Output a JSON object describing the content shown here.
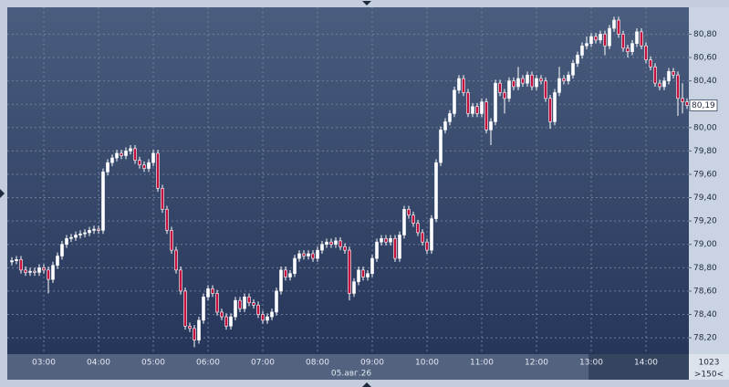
{
  "chart_data": {
    "type": "candlestick",
    "x": [
      145,
      150,
      155,
      160,
      165,
      170,
      175,
      180,
      185,
      190,
      195,
      200,
      205,
      210,
      215,
      220,
      225,
      230,
      235,
      240,
      245,
      250,
      255,
      260,
      265,
      270,
      275,
      280,
      285,
      290,
      295,
      300,
      305,
      310,
      315,
      320,
      325,
      330,
      335,
      340,
      345,
      350,
      355,
      360,
      365,
      370,
      375,
      380,
      385,
      390,
      395,
      400,
      405,
      410,
      415,
      420,
      425,
      430,
      435,
      440,
      445,
      450,
      455,
      460,
      465,
      470,
      475,
      480,
      485,
      490,
      495,
      500,
      505,
      510,
      515,
      520,
      525,
      530,
      535,
      540,
      545,
      550,
      555,
      560,
      565,
      570,
      575,
      580,
      585,
      590,
      595,
      600,
      605,
      610,
      615,
      620,
      625,
      630,
      635,
      640,
      645,
      650,
      655,
      660,
      665,
      670,
      675,
      680,
      685,
      690,
      695,
      700,
      705,
      710,
      715,
      720,
      725,
      730,
      735,
      740,
      745,
      750,
      755,
      760,
      765,
      770,
      775,
      780,
      785,
      790,
      795,
      800,
      805,
      810,
      815,
      820,
      825,
      830,
      835,
      840,
      845,
      850,
      855,
      860,
      865,
      870,
      875,
      880,
      885
    ],
    "open": [
      78.85,
      78.86,
      78.87,
      78.78,
      78.76,
      78.77,
      78.76,
      78.8,
      78.78,
      78.7,
      78.82,
      78.9,
      79.0,
      79.05,
      79.06,
      79.08,
      79.09,
      79.1,
      79.12,
      79.13,
      79.12,
      79.62,
      79.7,
      79.74,
      79.78,
      79.76,
      79.8,
      79.82,
      79.72,
      79.68,
      79.65,
      79.7,
      79.78,
      79.48,
      79.3,
      79.12,
      78.95,
      78.78,
      78.6,
      78.3,
      78.28,
      78.18,
      78.35,
      78.55,
      78.62,
      78.58,
      78.42,
      78.38,
      78.3,
      78.38,
      78.52,
      78.45,
      78.55,
      78.5,
      78.48,
      78.4,
      78.35,
      78.38,
      78.42,
      78.6,
      78.78,
      78.72,
      78.75,
      78.88,
      78.92,
      78.9,
      78.92,
      78.88,
      78.95,
      79.0,
      79.02,
      79.0,
      79.03,
      78.98,
      78.95,
      78.58,
      78.68,
      78.78,
      78.72,
      78.75,
      78.88,
      79.02,
      79.05,
      79.02,
      79.05,
      78.88,
      79.08,
      79.3,
      79.25,
      79.18,
      79.1,
      79.02,
      78.95,
      79.22,
      79.7,
      79.98,
      80.05,
      80.12,
      80.32,
      80.42,
      80.3,
      80.12,
      80.18,
      80.12,
      80.22,
      79.98,
      80.05,
      80.38,
      80.3,
      80.25,
      80.4,
      80.35,
      80.42,
      80.38,
      80.45,
      80.35,
      80.42,
      80.4,
      80.25,
      80.05,
      80.3,
      80.42,
      80.4,
      80.45,
      80.55,
      80.62,
      80.7,
      80.72,
      80.78,
      80.75,
      80.8,
      80.7,
      80.85,
      80.92,
      80.8,
      80.68,
      80.65,
      80.72,
      80.82,
      80.7,
      80.58,
      80.52,
      80.38,
      80.35,
      80.4,
      80.48,
      80.45,
      80.25,
      80.22
    ],
    "high": [
      78.89,
      78.9,
      78.9,
      78.81,
      78.8,
      78.8,
      78.83,
      78.83,
      78.81,
      78.85,
      78.93,
      79.03,
      79.08,
      79.09,
      79.11,
      79.12,
      79.13,
      79.15,
      79.16,
      79.16,
      79.65,
      79.73,
      79.77,
      79.81,
      79.81,
      79.83,
      79.85,
      79.85,
      79.75,
      79.71,
      79.73,
      79.81,
      79.81,
      79.51,
      79.33,
      79.15,
      78.98,
      78.81,
      78.63,
      78.33,
      78.31,
      78.38,
      78.58,
      78.65,
      78.65,
      78.61,
      78.45,
      78.41,
      78.41,
      78.55,
      78.55,
      78.58,
      78.58,
      78.53,
      78.51,
      78.43,
      78.41,
      78.45,
      78.63,
      78.81,
      78.81,
      78.78,
      78.91,
      78.95,
      78.95,
      78.95,
      78.95,
      78.98,
      79.03,
      79.05,
      79.05,
      79.06,
      79.06,
      79.01,
      78.98,
      78.71,
      78.81,
      78.81,
      78.78,
      78.91,
      79.05,
      79.08,
      79.08,
      79.08,
      79.08,
      79.11,
      79.33,
      79.33,
      79.28,
      79.21,
      79.13,
      79.05,
      79.25,
      79.73,
      80.01,
      80.08,
      80.15,
      80.35,
      80.45,
      80.45,
      80.33,
      80.21,
      80.21,
      80.25,
      80.25,
      80.08,
      80.41,
      80.41,
      80.33,
      80.43,
      80.43,
      80.52,
      80.45,
      80.48,
      80.48,
      80.45,
      80.45,
      80.43,
      80.28,
      80.33,
      80.52,
      80.45,
      80.48,
      80.58,
      80.65,
      80.73,
      80.78,
      80.81,
      80.81,
      80.83,
      80.83,
      80.88,
      80.95,
      80.95,
      80.83,
      80.71,
      80.75,
      80.85,
      80.85,
      80.73,
      80.61,
      80.55,
      80.41,
      80.43,
      80.51,
      80.51,
      80.48,
      80.38,
      80.25
    ],
    "low": [
      78.82,
      78.83,
      78.75,
      78.73,
      78.73,
      78.73,
      78.73,
      78.75,
      78.58,
      78.67,
      78.79,
      78.87,
      78.97,
      79.02,
      79.03,
      79.05,
      79.06,
      79.07,
      79.09,
      79.09,
      79.09,
      79.59,
      79.67,
      79.71,
      79.73,
      79.73,
      79.77,
      79.69,
      79.65,
      79.62,
      79.62,
      79.67,
      79.45,
      79.27,
      79.09,
      78.92,
      78.75,
      78.57,
      78.27,
      78.25,
      78.12,
      78.15,
      78.32,
      78.52,
      78.55,
      78.39,
      78.35,
      78.27,
      78.27,
      78.35,
      78.42,
      78.42,
      78.47,
      78.45,
      78.37,
      78.32,
      78.32,
      78.35,
      78.39,
      78.57,
      78.69,
      78.69,
      78.72,
      78.85,
      78.87,
      78.87,
      78.85,
      78.85,
      78.92,
      78.97,
      78.97,
      78.97,
      78.95,
      78.92,
      78.52,
      78.55,
      78.65,
      78.69,
      78.69,
      78.72,
      78.85,
      78.99,
      78.99,
      78.99,
      78.85,
      78.85,
      79.05,
      79.22,
      79.15,
      79.07,
      78.99,
      78.92,
      78.92,
      79.19,
      79.67,
      79.95,
      80.02,
      80.09,
      80.29,
      80.27,
      80.09,
      80.09,
      80.09,
      80.09,
      79.95,
      79.85,
      80.02,
      80.27,
      80.12,
      80.22,
      80.32,
      80.32,
      80.35,
      80.35,
      80.32,
      80.32,
      80.37,
      80.22,
      79.99,
      80.02,
      80.27,
      80.37,
      80.37,
      80.42,
      80.52,
      80.59,
      80.67,
      80.69,
      80.72,
      80.72,
      80.62,
      80.67,
      80.82,
      80.77,
      80.65,
      80.6,
      80.62,
      80.69,
      80.67,
      80.55,
      80.49,
      80.35,
      80.32,
      80.32,
      80.37,
      80.42,
      80.1,
      80.12,
      80.16
    ],
    "close": [
      78.86,
      78.87,
      78.78,
      78.76,
      78.77,
      78.76,
      78.8,
      78.78,
      78.7,
      78.82,
      78.9,
      79.0,
      79.05,
      79.06,
      79.08,
      79.09,
      79.1,
      79.12,
      79.13,
      79.12,
      79.62,
      79.7,
      79.74,
      79.78,
      79.76,
      79.8,
      79.82,
      79.72,
      79.68,
      79.65,
      79.7,
      79.78,
      79.48,
      79.3,
      79.12,
      78.95,
      78.78,
      78.6,
      78.3,
      78.28,
      78.18,
      78.35,
      78.55,
      78.62,
      78.58,
      78.42,
      78.38,
      78.3,
      78.38,
      78.52,
      78.45,
      78.55,
      78.5,
      78.48,
      78.4,
      78.35,
      78.38,
      78.42,
      78.6,
      78.78,
      78.72,
      78.75,
      78.88,
      78.92,
      78.9,
      78.92,
      78.88,
      78.95,
      79.0,
      79.02,
      79.0,
      79.03,
      78.98,
      78.95,
      78.58,
      78.68,
      78.78,
      78.72,
      78.75,
      78.88,
      79.02,
      79.05,
      79.02,
      79.05,
      78.88,
      79.08,
      79.3,
      79.25,
      79.18,
      79.1,
      79.02,
      78.95,
      79.22,
      79.7,
      79.98,
      80.05,
      80.12,
      80.32,
      80.42,
      80.3,
      80.12,
      80.18,
      80.12,
      80.22,
      79.98,
      80.05,
      80.38,
      80.3,
      80.25,
      80.4,
      80.35,
      80.42,
      80.38,
      80.45,
      80.35,
      80.42,
      80.4,
      80.25,
      80.05,
      80.3,
      80.42,
      80.4,
      80.45,
      80.55,
      80.62,
      80.7,
      80.72,
      80.78,
      80.75,
      80.8,
      80.7,
      80.85,
      80.92,
      80.8,
      80.68,
      80.65,
      80.72,
      80.82,
      80.7,
      80.58,
      80.52,
      80.38,
      80.35,
      80.4,
      80.48,
      80.45,
      80.25,
      80.22,
      80.19
    ],
    "up_color": "#ffffff",
    "down_color": "#c8103e",
    "xlim": [
      140,
      887
    ],
    "xticks": [
      {
        "value": 180,
        "label": "03:00"
      },
      {
        "value": 240,
        "label": "04:00"
      },
      {
        "value": 300,
        "label": "05:00"
      },
      {
        "value": 360,
        "label": "06:00"
      },
      {
        "value": 420,
        "label": "07:00"
      },
      {
        "value": 480,
        "label": "08:00"
      },
      {
        "value": 540,
        "label": "09:00"
      },
      {
        "value": 600,
        "label": "10:00"
      },
      {
        "value": 660,
        "label": "11:00"
      },
      {
        "value": 720,
        "label": "12:00"
      },
      {
        "value": 780,
        "label": "13:00"
      },
      {
        "value": 840,
        "label": "14:00"
      }
    ],
    "ylim": [
      78.06,
      81.03
    ],
    "yticks": [
      {
        "value": 78.2,
        "label": "78,20"
      },
      {
        "value": 78.4,
        "label": "78,40"
      },
      {
        "value": 78.6,
        "label": "78,60"
      },
      {
        "value": 78.8,
        "label": "78,80"
      },
      {
        "value": 79.0,
        "label": "79,00"
      },
      {
        "value": 79.2,
        "label": "79,20"
      },
      {
        "value": 79.4,
        "label": "79,40"
      },
      {
        "value": 79.6,
        "label": "79,60"
      },
      {
        "value": 79.8,
        "label": "79,80"
      },
      {
        "value": 80.0,
        "label": "80,00"
      },
      {
        "value": 80.2,
        "label": "80,20"
      },
      {
        "value": 80.4,
        "label": "80,40"
      },
      {
        "value": 80.6,
        "label": "80,60"
      },
      {
        "value": 80.8,
        "label": "80,80"
      }
    ],
    "grid": true,
    "last_price": {
      "value": 80.19,
      "label": "80,19"
    },
    "date_label": "05.авг.26",
    "counter_label": "1023",
    "zoom_label": ">150<"
  }
}
